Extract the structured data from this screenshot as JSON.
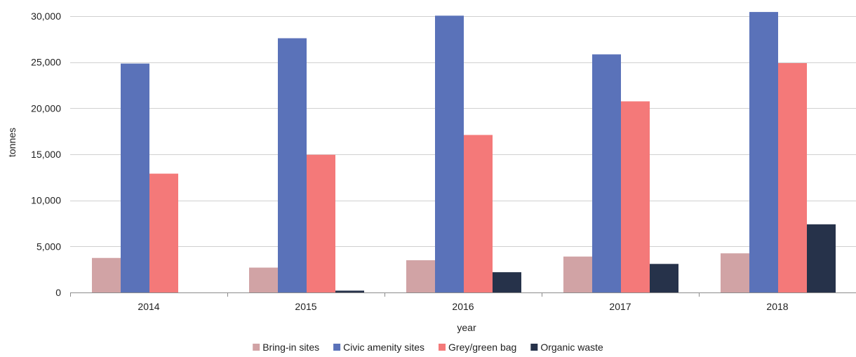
{
  "chart_data": {
    "type": "bar",
    "title": "",
    "xlabel": "year",
    "ylabel": "tonnes",
    "categories": [
      "2014",
      "2015",
      "2016",
      "2017",
      "2018"
    ],
    "ylim": [
      0,
      30000
    ],
    "yticks": [
      0,
      5000,
      10000,
      15000,
      20000,
      25000,
      30000
    ],
    "ytick_labels": [
      "0",
      "5,000",
      "10,000",
      "15,000",
      "20,000",
      "25,000",
      "30,000"
    ],
    "grid": true,
    "legend_position": "bottom",
    "series": [
      {
        "name": "Bring-in sites",
        "color": "#d1a3a5",
        "values": [
          3750,
          2700,
          3500,
          3900,
          4250
        ]
      },
      {
        "name": "Civic amenity sites",
        "color": "#5a72b9",
        "values": [
          24850,
          27600,
          30050,
          25850,
          30450
        ]
      },
      {
        "name": "Grey/green bag",
        "color": "#f47979",
        "values": [
          12900,
          14950,
          17100,
          20750,
          24900
        ]
      },
      {
        "name": "Organic waste",
        "color": "#26324a",
        "values": [
          0,
          200,
          2200,
          3100,
          7400
        ]
      }
    ]
  }
}
